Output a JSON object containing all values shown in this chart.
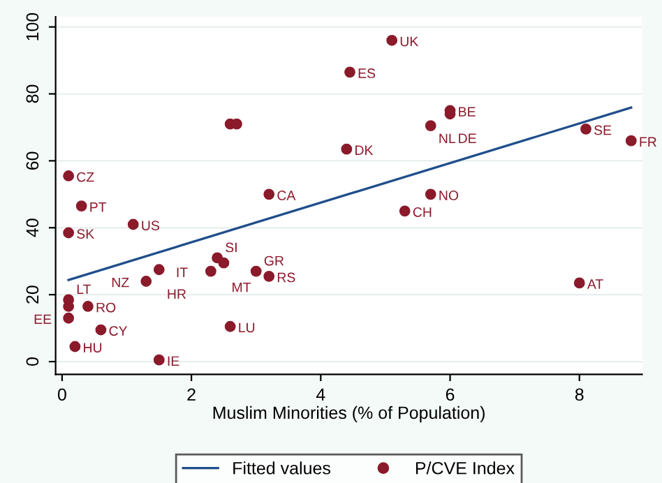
{
  "chart_data": {
    "type": "scatter",
    "xlabel": "Muslim Minorities (% of Population)",
    "xlim": [
      -0.1,
      8.97
    ],
    "ylim": [
      -3.8,
      103
    ],
    "xticks": [
      0,
      2,
      4,
      6,
      8
    ],
    "yticks": [
      0,
      20,
      40,
      60,
      80,
      100
    ],
    "grid": "y",
    "legend": "bottom",
    "series": [
      {
        "name": "Fitted values",
        "type": "line",
        "color": "#1f4e8c",
        "line_style": "solid",
        "x": [
          0.1,
          8.8
        ],
        "values": [
          24.4,
          75.9
        ]
      },
      {
        "name": "P/CVE Index",
        "marker": "circle",
        "color": "#8b1a2b",
        "x": [
          5.1,
          4.45,
          2.6,
          2.7,
          6.0,
          6.0,
          5.7,
          8.1,
          8.8,
          4.4,
          5.7,
          5.3,
          8.0,
          0.1,
          0.3,
          0.1,
          1.1,
          3.2,
          2.4,
          2.5,
          2.3,
          3.0,
          3.2,
          1.5,
          1.3,
          0.1,
          0.1,
          0.4,
          0.1,
          0.6,
          0.2,
          2.6,
          1.5
        ],
        "values": [
          96,
          86.5,
          71,
          71,
          75,
          74,
          70.5,
          69.5,
          66,
          63.5,
          50,
          45,
          23.5,
          55.5,
          46.5,
          38.5,
          41,
          50,
          31,
          29.5,
          27,
          27,
          25.5,
          27.5,
          24,
          18.5,
          16.5,
          16.5,
          13,
          9.5,
          4.5,
          10.5,
          0.5
        ]
      }
    ],
    "annotations": [
      {
        "text": "UK",
        "x": 5.1,
        "y": 96
      },
      {
        "text": "ES",
        "x": 4.45,
        "y": 86.5
      },
      {
        "text": "BE",
        "x": 6.0,
        "y": 75
      },
      {
        "text": "DE",
        "x": 6.0,
        "y": 74
      },
      {
        "text": "NL",
        "x": 5.7,
        "y": 70.5
      },
      {
        "text": "SE",
        "x": 8.1,
        "y": 69.5
      },
      {
        "text": "FR",
        "x": 8.8,
        "y": 66
      },
      {
        "text": "DK",
        "x": 4.4,
        "y": 63.5
      },
      {
        "text": "NO",
        "x": 5.7,
        "y": 50
      },
      {
        "text": "CH",
        "x": 5.3,
        "y": 45
      },
      {
        "text": "AT",
        "x": 8.0,
        "y": 23.5
      },
      {
        "text": "CZ",
        "x": 0.1,
        "y": 55.5
      },
      {
        "text": "PT",
        "x": 0.3,
        "y": 46.5
      },
      {
        "text": "SK",
        "x": 0.1,
        "y": 38.5
      },
      {
        "text": "US",
        "x": 1.1,
        "y": 41
      },
      {
        "text": "CA",
        "x": 3.2,
        "y": 50
      },
      {
        "text": "SI",
        "x": 2.4,
        "y": 31
      },
      {
        "text": "MT",
        "x": 2.5,
        "y": 29.5
      },
      {
        "text": "IT",
        "x": 2.3,
        "y": 27
      },
      {
        "text": "GR",
        "x": 3.0,
        "y": 27
      },
      {
        "text": "RS",
        "x": 3.2,
        "y": 25.5
      },
      {
        "text": "HR",
        "x": 1.5,
        "y": 27.5
      },
      {
        "text": "NZ",
        "x": 1.3,
        "y": 24
      },
      {
        "text": "LT",
        "x": 0.1,
        "y": 18.5
      },
      {
        "text": "RO",
        "x": 0.4,
        "y": 16.5
      },
      {
        "text": "EE",
        "x": 0.1,
        "y": 13
      },
      {
        "text": "CY",
        "x": 0.6,
        "y": 9.5
      },
      {
        "text": "HU",
        "x": 0.2,
        "y": 4.5
      },
      {
        "text": "LU",
        "x": 2.6,
        "y": 10.5
      },
      {
        "text": "IE",
        "x": 1.5,
        "y": 0.5
      }
    ]
  }
}
